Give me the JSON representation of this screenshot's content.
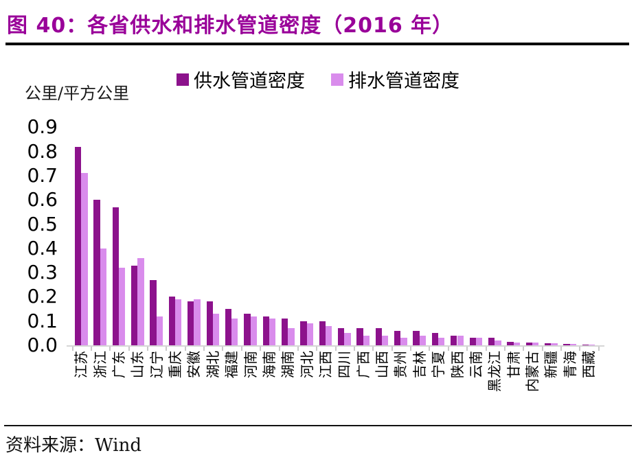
{
  "colors": {
    "title": "#990099",
    "supply": "#8c128c",
    "drainage": "#d98cec",
    "axis_line": "#d6d6d6",
    "tick": "#c9c9c9"
  },
  "footer": {
    "source": "资料来源：Wind"
  },
  "chart_data": {
    "type": "bar",
    "title": "图 40：各省供水和排水管道密度（2016 年）",
    "unit_label": "公里/平方公里",
    "xlabel": "",
    "ylabel": "公里/平方公里",
    "ylim": [
      0,
      0.9
    ],
    "y_ticks": [
      "0.9",
      "0.8",
      "0.7",
      "0.6",
      "0.5",
      "0.4",
      "0.3",
      "0.2",
      "0.1",
      "0.0"
    ],
    "grid": false,
    "legend_position": "top",
    "categories": [
      "江苏",
      "浙江",
      "广东",
      "山东",
      "辽宁",
      "重庆",
      "安徽",
      "湖北",
      "福建",
      "河南",
      "海南",
      "湖南",
      "河北",
      "江西",
      "四川",
      "广西",
      "山西",
      "贵州",
      "吉林",
      "宁夏",
      "陕西",
      "云南",
      "黑龙江",
      "甘肃",
      "内蒙古",
      "新疆",
      "青海",
      "西藏"
    ],
    "series": [
      {
        "name": "供水管道密度",
        "color": "#8c128c",
        "values": [
          0.82,
          0.6,
          0.57,
          0.33,
          0.27,
          0.2,
          0.18,
          0.18,
          0.15,
          0.13,
          0.12,
          0.11,
          0.1,
          0.1,
          0.07,
          0.07,
          0.07,
          0.06,
          0.06,
          0.05,
          0.04,
          0.03,
          0.03,
          0.015,
          0.01,
          0.008,
          0.005,
          0.003
        ]
      },
      {
        "name": "排水管道密度",
        "color": "#d98cec",
        "values": [
          0.71,
          0.4,
          0.32,
          0.36,
          0.12,
          0.19,
          0.19,
          0.13,
          0.11,
          0.12,
          0.11,
          0.07,
          0.09,
          0.08,
          0.05,
          0.04,
          0.04,
          0.03,
          0.04,
          0.03,
          0.04,
          0.03,
          0.02,
          0.012,
          0.012,
          0.009,
          0.005,
          0.002
        ]
      }
    ]
  }
}
